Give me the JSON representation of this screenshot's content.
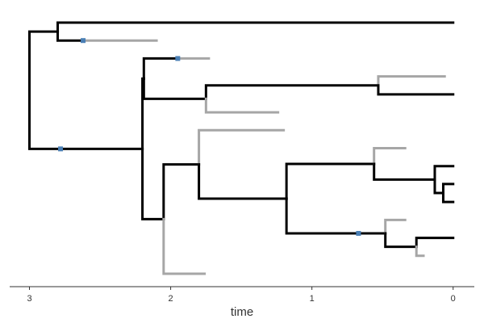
{
  "chart_data": {
    "type": "tree",
    "xlabel": "time",
    "xlim": [
      3.14,
      -0.15
    ],
    "xticks": [
      3,
      2,
      1,
      0
    ],
    "marker_color": "#4a7fb5",
    "nodes": [
      {
        "time": 3.0,
        "parent": null,
        "color": "#000000"
      },
      {
        "time": 2.8,
        "parent": 0,
        "color": "#000000"
      },
      {
        "time": 0,
        "parent": 1,
        "color": "#000000"
      },
      {
        "time": 2.62,
        "parent": 1,
        "color": "#000000",
        "marker": true
      },
      {
        "time": 2.1,
        "parent": 3,
        "color": "#a6a6a6"
      },
      {
        "time": 2.78,
        "parent": 0,
        "color": "#000000",
        "marker": true
      },
      {
        "time": 2.2,
        "parent": 5,
        "color": "#000000"
      },
      {
        "time": 2.19,
        "parent": 6,
        "color": "#000000"
      },
      {
        "time": 1.95,
        "parent": 7,
        "color": "#000000",
        "marker": true
      },
      {
        "time": 1.73,
        "parent": 8,
        "color": "#a6a6a6"
      },
      {
        "time": 1.75,
        "parent": 7,
        "color": "#000000"
      },
      {
        "time": 0.53,
        "parent": 10,
        "color": "#000000"
      },
      {
        "time": 0.06,
        "parent": 11,
        "color": "#a6a6a6"
      },
      {
        "time": 0,
        "parent": 11,
        "color": "#000000"
      },
      {
        "time": 1.24,
        "parent": 10,
        "color": "#a6a6a6"
      },
      {
        "time": 2.05,
        "parent": 6,
        "color": "#000000"
      },
      {
        "time": 1.8,
        "parent": 15,
        "color": "#000000"
      },
      {
        "time": 1.2,
        "parent": 16,
        "color": "#a6a6a6"
      },
      {
        "time": 1.18,
        "parent": 16,
        "color": "#000000"
      },
      {
        "time": 0.56,
        "parent": 18,
        "color": "#000000"
      },
      {
        "time": 0.34,
        "parent": 19,
        "color": "#a6a6a6"
      },
      {
        "time": 0.13,
        "parent": 19,
        "color": "#000000"
      },
      {
        "time": 0,
        "parent": 21,
        "color": "#000000"
      },
      {
        "time": 0.07,
        "parent": 21,
        "color": "#000000"
      },
      {
        "time": 0,
        "parent": 23,
        "color": "#000000"
      },
      {
        "time": 0,
        "parent": 23,
        "color": "#000000"
      },
      {
        "time": 0.67,
        "parent": 18,
        "color": "#000000",
        "marker": true
      },
      {
        "time": 0.48,
        "parent": 26,
        "color": "#000000"
      },
      {
        "time": 0.34,
        "parent": 27,
        "color": "#a6a6a6"
      },
      {
        "time": 0.26,
        "parent": 27,
        "color": "#000000"
      },
      {
        "time": 0,
        "parent": 29,
        "color": "#000000"
      },
      {
        "time": 0.21,
        "parent": 29,
        "color": "#a6a6a6"
      },
      {
        "time": 1.76,
        "parent": 15,
        "color": "#a6a6a6"
      }
    ]
  }
}
